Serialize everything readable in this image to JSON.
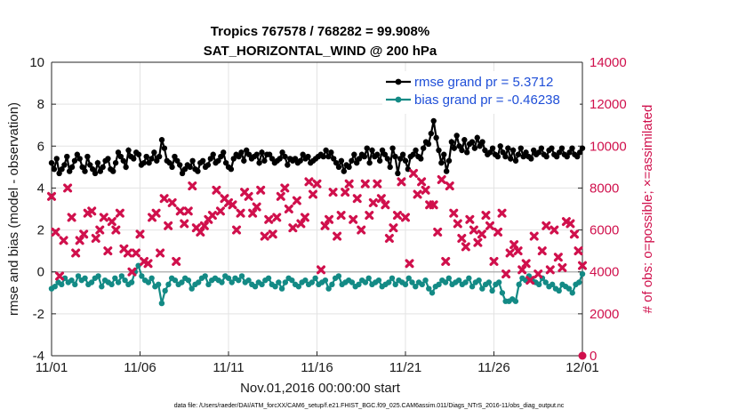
{
  "chart_data": {
    "type": "line",
    "title": "Tropics 767578 / 768282 = 99.908%",
    "subtitle": "SAT_HORIZONTAL_WIND @ 200 hPa",
    "xlabel": "Nov.01,2016 00:00:00 start",
    "ylabel": "rmse and bias (model - observation)",
    "ylabel_right": "# of obs: o=possible; ×=assimilated",
    "x_ticks": [
      "11/01",
      "11/06",
      "11/11",
      "11/16",
      "11/21",
      "11/26",
      "12/01"
    ],
    "y_ticks": [
      "-4",
      "-2",
      "0",
      "2",
      "4",
      "6",
      "8",
      "10"
    ],
    "y_right_ticks": [
      "0",
      "2000",
      "4000",
      "6000",
      "8000",
      "10000",
      "12000",
      "14000"
    ],
    "xlim": [
      0,
      30
    ],
    "ylim": [
      -4,
      10
    ],
    "ylim_right": [
      0,
      14000
    ],
    "footnote": "data file: /Users/raeder/DAI/ATM_forcXX/CAM6_setup/f.e21.FHIST_BGC.f09_025.CAM6assim.011/Diags_NTrS_2016-11/obs_diag_output.nc",
    "legend": {
      "position": "top-right",
      "entries": [
        "rmse grand pr = 5.3712",
        "bias grand pr = -0.46238"
      ]
    },
    "series": [
      {
        "name": "rmse grand pr = 5.3712",
        "axis": "left",
        "color": "#000000",
        "values": [
          5.2,
          4.9,
          5.4,
          4.7,
          4.9,
          5.1,
          5.5,
          4.8,
          5.0,
          5.3,
          5.6,
          5.4,
          5.0,
          4.8,
          5.5,
          5.1,
          4.9,
          4.7,
          5.2,
          4.8,
          5.0,
          5.3,
          5.4,
          4.9,
          4.8,
          5.2,
          5.7,
          5.5,
          5.3,
          5.0,
          5.8,
          5.5,
          5.4,
          5.7,
          5.6,
          5.1,
          5.2,
          5.5,
          5.2,
          5.4,
          5.7,
          5.3,
          5.5,
          6.3,
          5.9,
          5.3,
          5.2,
          5.0,
          5.5,
          5.3,
          5.1,
          4.7,
          4.9,
          5.1,
          5.0,
          5.3,
          4.9,
          4.8,
          5.2,
          5.3,
          5.0,
          5.1,
          5.4,
          5.6,
          5.2,
          5.3,
          5.5,
          5.7,
          5.2,
          5.0,
          4.9,
          5.4,
          5.6,
          5.5,
          5.7,
          5.3,
          5.8,
          5.6,
          5.4,
          5.5,
          5.6,
          5.2,
          5.7,
          5.3,
          5.6,
          5.6,
          5.4,
          5.2,
          5.3,
          5.4,
          5.7,
          5.5,
          5.1,
          5.4,
          5.3,
          5.4,
          5.2,
          5.3,
          5.6,
          5.4,
          5.5,
          5.2,
          5.3,
          5.4,
          5.5,
          5.6,
          5.5,
          5.8,
          5.5,
          5.7,
          5.4,
          5.2,
          5.0,
          5.3,
          4.8,
          5.1,
          5.0,
          5.3,
          5.6,
          5.2,
          5.4,
          5.6,
          5.5,
          5.9,
          5.2,
          5.8,
          5.5,
          5.6,
          5.3,
          5.8,
          5.6,
          5.4,
          5.0,
          5.9,
          5.5,
          4.7,
          5.4,
          5.6,
          5.3,
          4.9,
          5.5,
          5.6,
          5.8,
          5.5,
          5.4,
          5.9,
          6.2,
          6.1,
          6.6,
          7.2,
          6.4,
          5.8,
          5.2,
          5.6,
          4.8,
          5.3,
          6.2,
          5.9,
          6.5,
          6.0,
          5.8,
          6.3,
          5.7,
          6.1,
          6.2,
          5.9,
          6.4,
          6.0,
          6.2,
          5.8,
          5.6,
          5.7,
          5.9,
          5.6,
          5.5,
          6.0,
          5.7,
          5.5,
          5.9,
          5.4,
          5.8,
          5.3,
          5.6,
          5.9,
          5.5,
          5.7,
          5.5,
          5.4,
          5.8,
          5.6,
          5.7,
          5.9,
          5.6,
          5.5,
          5.8,
          5.9,
          5.6,
          5.5,
          5.7,
          5.9,
          5.6,
          5.5,
          5.7,
          5.9,
          5.6,
          5.5,
          5.7,
          5.9
        ]
      },
      {
        "name": "bias grand pr = -0.46238",
        "axis": "left",
        "color": "#138a85",
        "values": [
          -0.8,
          -0.7,
          -0.5,
          -0.6,
          -0.3,
          -0.5,
          -0.4,
          -0.6,
          -0.2,
          -0.4,
          -0.3,
          -0.6,
          -0.5,
          -0.3,
          -0.2,
          -0.7,
          -0.4,
          -0.5,
          -0.6,
          -0.3,
          -0.5,
          -0.2,
          -0.4,
          -0.6,
          -0.5,
          0.0,
          0.3,
          -0.2,
          -0.4,
          -0.5,
          -0.3,
          -0.7,
          -0.6,
          -1.5,
          -0.9,
          -0.6,
          -0.3,
          -0.4,
          -0.6,
          -0.5,
          -0.3,
          -0.4,
          -0.8,
          -0.6,
          -0.5,
          -0.3,
          -0.2,
          -0.6,
          -0.4,
          -0.3,
          -0.4,
          -0.5,
          -0.2,
          -0.3,
          -0.5,
          -0.3,
          -0.4,
          -0.2,
          -0.5,
          -0.4,
          -0.6,
          -0.7,
          -0.5,
          -0.6,
          -0.4,
          -0.3,
          -0.6,
          -0.7,
          -0.5,
          -0.8,
          -0.5,
          -0.3,
          -0.4,
          -0.6,
          -0.7,
          -0.5,
          -0.4,
          -0.6,
          -0.5,
          -0.3,
          -0.6,
          -0.5,
          -0.4,
          -0.8,
          -0.6,
          -0.3,
          -0.2,
          -0.6,
          -0.5,
          -0.4,
          -0.5,
          -0.7,
          -0.6,
          -0.4,
          -0.5,
          -0.3,
          -0.6,
          -0.5,
          -0.4,
          -0.7,
          -0.6,
          -0.5,
          -0.3,
          -0.6,
          -0.4,
          -0.5,
          -0.6,
          -0.3,
          -0.5,
          -0.7,
          -0.5,
          -0.6,
          -0.4,
          -0.8,
          -1.0,
          -0.7,
          -0.6,
          -0.4,
          -0.5,
          -0.3,
          -0.6,
          -0.5,
          -0.4,
          -0.6,
          -0.5,
          -0.3,
          -0.7,
          -0.5,
          -0.4,
          -0.8,
          -0.6,
          -0.5,
          -0.9,
          -0.6,
          -0.5,
          -1.0,
          -1.4,
          -1.4,
          -1.3,
          -1.4,
          -0.6,
          -0.3,
          -0.4,
          -0.2,
          -0.4,
          -0.5,
          -0.6,
          -0.3,
          -0.5,
          -0.7,
          -0.6,
          -0.8,
          -0.9,
          -0.6,
          -0.7,
          -0.8,
          -1.0,
          -0.6,
          -0.5,
          -0.1
        ]
      },
      {
        "name": "possible obs",
        "axis": "right",
        "color": "#d0104c",
        "marker": "circle",
        "values": [
          0
        ]
      },
      {
        "name": "assimilated obs",
        "axis": "right",
        "color": "#d0104c",
        "marker": "x",
        "values": [
          7600,
          5900,
          3800,
          5500,
          8000,
          6600,
          4900,
          5500,
          5800,
          6800,
          6900,
          5600,
          6000,
          6600,
          5000,
          6400,
          6000,
          6800,
          5100,
          4900,
          4000,
          4900,
          5800,
          4500,
          4400,
          6600,
          6800,
          4900,
          7500,
          6200,
          7300,
          4500,
          6900,
          6300,
          6900,
          8100,
          6100,
          5900,
          6200,
          6500,
          6700,
          7900,
          6900,
          7500,
          7300,
          7200,
          6000,
          6800,
          7800,
          7600,
          6800,
          7100,
          7900,
          5700,
          6500,
          5800,
          6600,
          7600,
          8000,
          7000,
          6100,
          7400,
          6300,
          6600,
          8300,
          7700,
          8200,
          4100,
          6200,
          6500,
          7800,
          5700,
          6700,
          7800,
          8200,
          6500,
          7500,
          6000,
          8200,
          6700,
          7300,
          8200,
          7500,
          7200,
          5600,
          6100,
          6700,
          8300,
          6600,
          4400,
          8700,
          7700,
          8300,
          7900,
          7200,
          7200,
          5900,
          8400,
          4500,
          8100,
          6800,
          6300,
          5600,
          5200,
          6500,
          6000,
          5400,
          5800,
          6700,
          6200,
          4500,
          5900,
          6800,
          3900,
          4900,
          5300,
          5000,
          4100,
          4400,
          3600,
          5700,
          3900,
          5000,
          6200,
          4100,
          6000,
          4700,
          4200,
          6400,
          6300,
          5800,
          5000,
          4300
        ]
      }
    ]
  }
}
